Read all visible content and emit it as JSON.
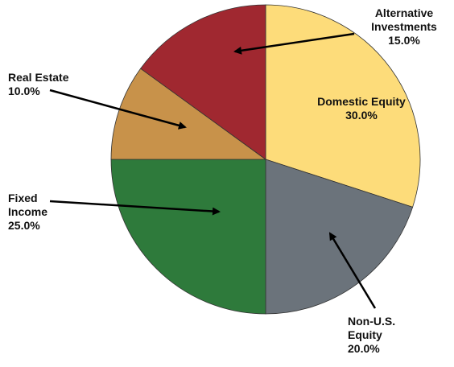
{
  "chart_data": {
    "type": "pie",
    "categories": [
      "Domestic Equity",
      "Non-U.S. Equity",
      "Fixed Income",
      "Real Estate",
      "Alternative Investments"
    ],
    "values": [
      30,
      20,
      25,
      10,
      15
    ],
    "value_labels": [
      "30.0%",
      "20.0%",
      "25.0%",
      "10.0%",
      "15.0%"
    ],
    "colors": [
      "#fddc7a",
      "#6b737b",
      "#2e7a3b",
      "#c8924a",
      "#a02830"
    ]
  }
}
